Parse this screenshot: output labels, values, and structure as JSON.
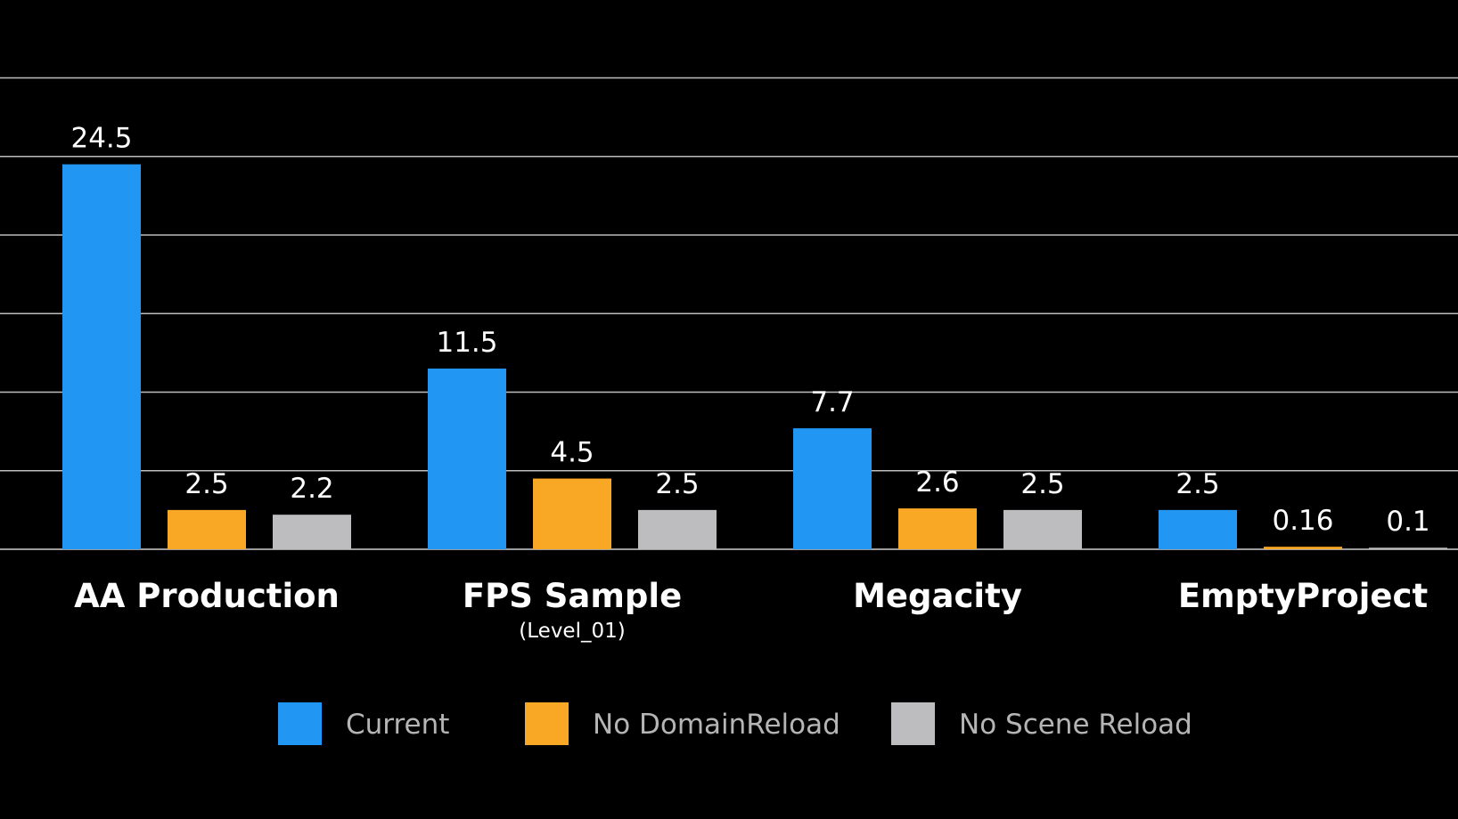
{
  "chart_data": {
    "type": "bar",
    "title": "",
    "xlabel": "",
    "ylabel": "",
    "ylim": [
      0,
      30
    ],
    "grid": true,
    "legend_position": "bottom-center",
    "categories": [
      "AA Production",
      "FPS Sample",
      "Megacity",
      "EmptyProject"
    ],
    "category_sublabels": [
      "",
      "(Level_01)",
      "",
      ""
    ],
    "series": [
      {
        "name": "Current",
        "color": "#2196f3",
        "values": [
          24.5,
          11.5,
          7.7,
          2.5
        ],
        "labels": [
          "24.5",
          "11.5",
          "7.7",
          "2.5"
        ]
      },
      {
        "name": "No DomainReload",
        "color": "#f9a825",
        "values": [
          2.5,
          4.5,
          2.6,
          0.16
        ],
        "labels": [
          "2.5",
          "4.5",
          "2.6",
          "0.16"
        ]
      },
      {
        "name": "No Scene Reload",
        "color": "#bdbdc0",
        "values": [
          2.2,
          2.5,
          2.5,
          0.1
        ],
        "labels": [
          "2.2",
          "2.5",
          "2.5",
          "0.1"
        ]
      }
    ]
  }
}
